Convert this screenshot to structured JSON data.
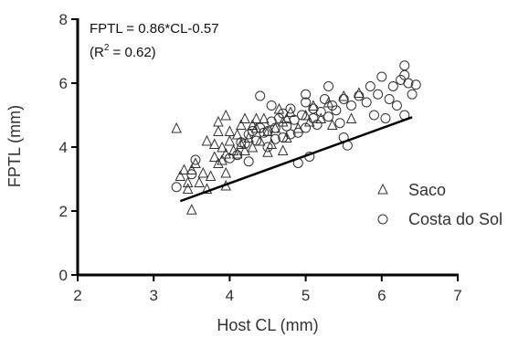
{
  "chart_data": {
    "type": "scatter",
    "xlabel": "Host CL (mm)",
    "ylabel": "FPTL (mm)",
    "xlim": [
      2,
      7
    ],
    "ylim": [
      0,
      8
    ],
    "xticks": [
      "2",
      "3",
      "4",
      "5",
      "6",
      "7"
    ],
    "yticks": [
      "0",
      "2",
      "4",
      "6",
      "8"
    ],
    "annotation": {
      "equation": "FPTL = 0.86*CL-0.57",
      "r2_prefix": "(R",
      "r2_sup": "2",
      "r2_suffix": " = 0.62)"
    },
    "fit": {
      "slope": 0.86,
      "intercept": -0.57,
      "x_range": [
        3.35,
        6.4
      ]
    },
    "legend_position": "right",
    "series": [
      {
        "name": "Saco",
        "marker": "triangle",
        "points": [
          [
            3.3,
            4.6
          ],
          [
            3.35,
            3.1
          ],
          [
            3.4,
            3.3
          ],
          [
            3.45,
            2.9
          ],
          [
            3.45,
            2.7
          ],
          [
            3.5,
            2.05
          ],
          [
            3.5,
            3.3
          ],
          [
            3.55,
            3.5
          ],
          [
            3.6,
            2.9
          ],
          [
            3.65,
            3.2
          ],
          [
            3.7,
            2.7
          ],
          [
            3.75,
            3.1
          ],
          [
            3.8,
            4.1
          ],
          [
            3.8,
            3.7
          ],
          [
            3.85,
            4.8
          ],
          [
            3.85,
            4.5
          ],
          [
            3.9,
            4.0
          ],
          [
            3.9,
            3.6
          ],
          [
            3.95,
            3.8
          ],
          [
            3.95,
            2.8
          ],
          [
            3.95,
            3.2
          ],
          [
            3.95,
            5.0
          ],
          [
            4.0,
            4.5
          ],
          [
            4.0,
            4.2
          ],
          [
            4.05,
            3.9
          ],
          [
            4.1,
            4.4
          ],
          [
            4.1,
            3.8
          ],
          [
            4.15,
            4.1
          ],
          [
            4.15,
            4.7
          ],
          [
            4.2,
            4.9
          ],
          [
            4.25,
            4.3
          ],
          [
            4.3,
            4.7
          ],
          [
            4.3,
            4.0
          ],
          [
            4.35,
            4.6
          ],
          [
            4.4,
            4.2
          ],
          [
            4.45,
            4.9
          ],
          [
            4.5,
            4.5
          ],
          [
            4.55,
            4.1
          ],
          [
            4.6,
            4.6
          ],
          [
            4.65,
            5.2
          ],
          [
            4.7,
            4.8
          ],
          [
            4.75,
            4.3
          ],
          [
            4.8,
            5.1
          ],
          [
            4.9,
            4.6
          ],
          [
            5.0,
            5.0
          ],
          [
            5.05,
            4.8
          ],
          [
            5.1,
            5.3
          ],
          [
            5.2,
            4.9
          ],
          [
            5.3,
            5.4
          ],
          [
            5.35,
            4.7
          ],
          [
            5.5,
            5.6
          ],
          [
            5.6,
            4.9
          ],
          [
            5.7,
            5.7
          ],
          [
            4.2,
            3.9
          ],
          [
            4.5,
            3.85
          ],
          [
            4.7,
            3.9
          ],
          [
            3.85,
            3.5
          ],
          [
            3.7,
            4.2
          ],
          [
            4.35,
            4.9
          ],
          [
            4.75,
            4.9
          ]
        ]
      },
      {
        "name": "Costa do Sol",
        "marker": "circle",
        "points": [
          [
            3.3,
            2.75
          ],
          [
            3.5,
            3.15
          ],
          [
            3.55,
            3.6
          ],
          [
            4.0,
            3.65
          ],
          [
            4.1,
            3.75
          ],
          [
            4.25,
            3.55
          ],
          [
            4.2,
            4.1
          ],
          [
            4.25,
            4.4
          ],
          [
            4.3,
            4.5
          ],
          [
            4.35,
            4.2
          ],
          [
            4.4,
            4.6
          ],
          [
            4.4,
            5.6
          ],
          [
            4.45,
            4.45
          ],
          [
            4.5,
            4.5
          ],
          [
            4.55,
            4.8
          ],
          [
            4.55,
            5.3
          ],
          [
            4.6,
            4.25
          ],
          [
            4.6,
            4.6
          ],
          [
            4.65,
            4.9
          ],
          [
            4.7,
            4.3
          ],
          [
            4.7,
            5.05
          ],
          [
            4.75,
            4.65
          ],
          [
            4.8,
            4.4
          ],
          [
            4.8,
            5.2
          ],
          [
            4.85,
            4.85
          ],
          [
            4.9,
            4.45
          ],
          [
            4.9,
            3.5
          ],
          [
            4.95,
            5.0
          ],
          [
            5.0,
            4.6
          ],
          [
            5.0,
            5.4
          ],
          [
            5.0,
            5.65
          ],
          [
            5.05,
            3.7
          ],
          [
            5.1,
            5.2
          ],
          [
            5.1,
            4.9
          ],
          [
            5.15,
            4.7
          ],
          [
            5.2,
            5.1
          ],
          [
            5.25,
            5.5
          ],
          [
            5.3,
            4.95
          ],
          [
            5.3,
            5.9
          ],
          [
            5.35,
            5.3
          ],
          [
            5.4,
            5.15
          ],
          [
            5.45,
            4.75
          ],
          [
            5.5,
            4.3
          ],
          [
            5.5,
            5.5
          ],
          [
            5.55,
            4.05
          ],
          [
            5.6,
            5.3
          ],
          [
            5.7,
            5.6
          ],
          [
            5.8,
            5.4
          ],
          [
            5.85,
            5.9
          ],
          [
            5.9,
            5.0
          ],
          [
            5.95,
            5.65
          ],
          [
            6.0,
            6.2
          ],
          [
            6.05,
            4.9
          ],
          [
            6.1,
            5.5
          ],
          [
            6.15,
            5.9
          ],
          [
            6.2,
            5.3
          ],
          [
            6.25,
            6.1
          ],
          [
            6.3,
            6.55
          ],
          [
            6.3,
            5.0
          ],
          [
            6.35,
            6.0
          ],
          [
            6.4,
            5.65
          ],
          [
            6.45,
            5.95
          ],
          [
            6.3,
            6.25
          ],
          [
            4.15,
            4.15
          ],
          [
            4.5,
            4.0
          ]
        ]
      }
    ]
  }
}
